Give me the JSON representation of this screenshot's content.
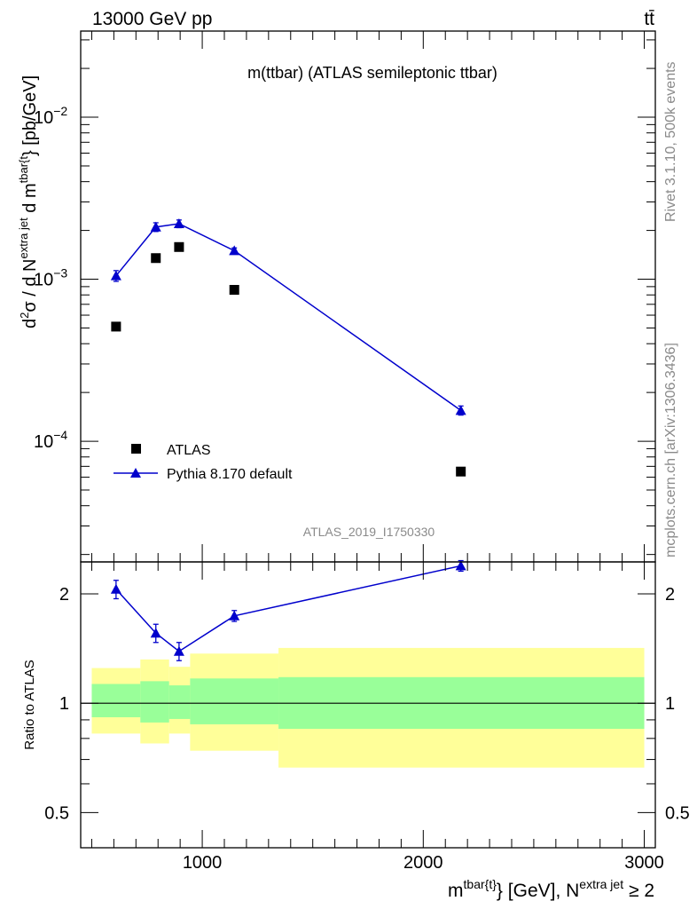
{
  "header": {
    "left": "13000 GeV pp",
    "right": "tt̄"
  },
  "side": {
    "top": "Rivet 3.1.10,  500k events",
    "bottom": "mcplots.cern.ch [arXiv:1306.3436]"
  },
  "chart_data": [
    {
      "type": "scatter",
      "panel": "main",
      "title": "m(ttbar) (ATLAS semileptonic ttbar)",
      "analysis_id": "ATLAS_2019_I1750330",
      "ylabel": "d²σ / d N^{extra jet} d m^{tbar{t}} [pb/GeV]",
      "ylabel_parts": {
        "pre": "d",
        "sup1": "2",
        "sigma": "σ / d N",
        "sup2": "extra jet",
        "mid": " d m",
        "sup3": "tbar{t",
        "post": "} [pb/GeV]"
      },
      "yscale": "log",
      "xlim": [
        450,
        3050
      ],
      "ylim": [
        1.8e-05,
        0.034
      ],
      "y_ticks": [
        {
          "value": 0.0001,
          "base": "10",
          "exp": "−4"
        },
        {
          "value": 0.001,
          "base": "10",
          "exp": "−3"
        },
        {
          "value": 0.01,
          "base": "10",
          "exp": "−2"
        }
      ],
      "legend": {
        "position": "bottom-left",
        "entries": [
          "ATLAS",
          "Pythia 8.170 default"
        ]
      },
      "series": [
        {
          "name": "ATLAS",
          "marker": "square",
          "color": "#000000",
          "x": [
            610,
            790,
            895,
            1145,
            2170
          ],
          "y": [
            0.00051,
            0.00135,
            0.00158,
            0.00086,
            6.5e-05
          ]
        },
        {
          "name": "Pythia 8.170 default",
          "marker": "triangle",
          "color": "#0000cc",
          "x": [
            610,
            790,
            895,
            1145,
            2170
          ],
          "y": [
            0.00105,
            0.0021,
            0.0022,
            0.0015,
            0.000155
          ],
          "yerr": [
            8e-05,
            0.00013,
            0.00012,
            6e-05,
            1e-05
          ]
        }
      ]
    },
    {
      "type": "scatter",
      "panel": "ratio",
      "ylabel": "Ratio to ATLAS",
      "xlabel": "m^{tbar{t}} [GeV], N^{extra jet} ≥ 2",
      "xlabel_parts": {
        "m": "m",
        "sup1": "tbar{t}",
        "mid": "} [GeV], N",
        "sup2": "extra jet",
        "post": "≥ 2"
      },
      "yscale": "log",
      "xlim": [
        450,
        3050
      ],
      "ylim": [
        0.4,
        2.45
      ],
      "x_ticks": [
        "1000",
        "2000",
        "3000"
      ],
      "x_tick_values": [
        1000,
        2000,
        3000
      ],
      "y_ticks": [
        "0.5",
        "1",
        "2"
      ],
      "y_tick_values": [
        0.5,
        1,
        2
      ],
      "bins": [
        {
          "x_low": 500,
          "x_high": 720,
          "stat_low": 0.915,
          "stat_high": 1.13,
          "total_low": 0.825,
          "total_high": 1.25
        },
        {
          "x_low": 720,
          "x_high": 850,
          "stat_low": 0.885,
          "stat_high": 1.15,
          "total_low": 0.775,
          "total_high": 1.32
        },
        {
          "x_low": 850,
          "x_high": 945,
          "stat_low": 0.905,
          "stat_high": 1.12,
          "total_low": 0.825,
          "total_high": 1.26
        },
        {
          "x_low": 945,
          "x_high": 1345,
          "stat_low": 0.875,
          "stat_high": 1.17,
          "total_low": 0.74,
          "total_high": 1.37
        },
        {
          "x_low": 1345,
          "x_high": 3000,
          "stat_low": 0.85,
          "stat_high": 1.18,
          "total_low": 0.665,
          "total_high": 1.42
        }
      ],
      "series": [
        {
          "name": "Pythia 8.170 default",
          "color": "#0000cc",
          "x": [
            610,
            790,
            895,
            1145,
            2170
          ],
          "y": [
            2.06,
            1.56,
            1.39,
            1.74,
            2.39
          ],
          "yerr": [
            0.12,
            0.09,
            0.08,
            0.06,
            0.08
          ]
        }
      ],
      "band_colors": {
        "stat": "#99ff99",
        "total": "#ffff99"
      }
    }
  ]
}
